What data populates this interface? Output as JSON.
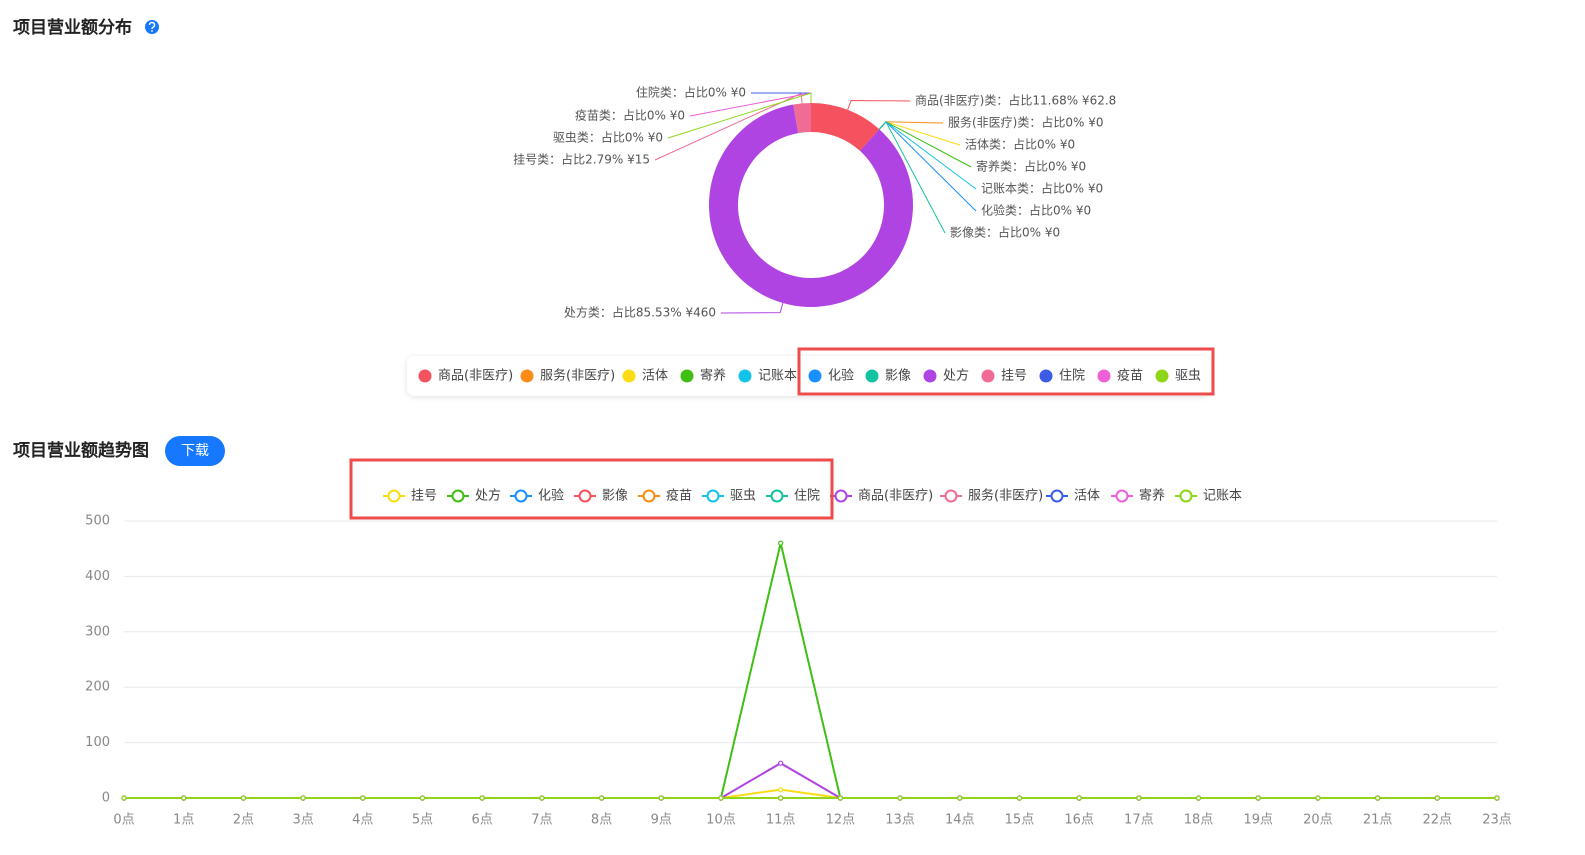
{
  "chart_data": [
    {
      "type": "donut",
      "title": "项目营业额分布",
      "categories": [
        "商品(非医疗)",
        "服务(非医疗)",
        "活体",
        "寄养",
        "记账本",
        "化验",
        "影像",
        "处方",
        "挂号",
        "住院",
        "疫苗",
        "驱虫"
      ],
      "values": [
        62.8,
        0,
        0,
        0,
        0,
        0,
        0,
        460,
        15,
        0,
        0,
        0
      ],
      "value_labels": [
        "商品(非医疗)类：占比11.68% ¥62.8",
        "服务(非医疗)类：占比0% ¥0",
        "活体类：占比0% ¥0",
        "寄养类：占比0% ¥0",
        "记账本类：占比0% ¥0",
        "化验类：占比0% ¥0",
        "影像类：占比0% ¥0",
        "处方类：占比85.53% ¥460",
        "挂号类：占比2.79% ¥15",
        "住院类：占比0% ¥0",
        "疫苗类：占比0% ¥0",
        "驱虫类：占比0% ¥0"
      ],
      "colors": [
        "#f5515f",
        "#fa8c16",
        "#fadb14",
        "#3fbf12",
        "#13c2e8",
        "#1890ff",
        "#13c2a0",
        "#b044e3",
        "#f06c94",
        "#3d5ce6",
        "#ee5fd8",
        "#8fd61a"
      ]
    },
    {
      "type": "line",
      "title": "项目营业额趋势图",
      "categories": [
        "0点",
        "1点",
        "2点",
        "3点",
        "4点",
        "5点",
        "6点",
        "7点",
        "8点",
        "9点",
        "10点",
        "11点",
        "12点",
        "13点",
        "14点",
        "15点",
        "16点",
        "17点",
        "18点",
        "19点",
        "20点",
        "21点",
        "22点",
        "23点"
      ],
      "ylim": [
        0,
        500
      ],
      "yticks": [
        0,
        100,
        200,
        300,
        400,
        500
      ],
      "grid": true,
      "series": [
        {
          "name": "挂号",
          "color": "#fadb14",
          "values": [
            0,
            0,
            0,
            0,
            0,
            0,
            0,
            0,
            0,
            0,
            0,
            15,
            0,
            0,
            0,
            0,
            0,
            0,
            0,
            0,
            0,
            0,
            0,
            0
          ]
        },
        {
          "name": "处方",
          "color": "#3fbf12",
          "values": [
            0,
            0,
            0,
            0,
            0,
            0,
            0,
            0,
            0,
            0,
            0,
            460,
            0,
            0,
            0,
            0,
            0,
            0,
            0,
            0,
            0,
            0,
            0,
            0
          ]
        },
        {
          "name": "化验",
          "color": "#1890ff",
          "values": [
            0,
            0,
            0,
            0,
            0,
            0,
            0,
            0,
            0,
            0,
            0,
            0,
            0,
            0,
            0,
            0,
            0,
            0,
            0,
            0,
            0,
            0,
            0,
            0
          ]
        },
        {
          "name": "影像",
          "color": "#f5515f",
          "values": [
            0,
            0,
            0,
            0,
            0,
            0,
            0,
            0,
            0,
            0,
            0,
            0,
            0,
            0,
            0,
            0,
            0,
            0,
            0,
            0,
            0,
            0,
            0,
            0
          ]
        },
        {
          "name": "疫苗",
          "color": "#fa8c16",
          "values": [
            0,
            0,
            0,
            0,
            0,
            0,
            0,
            0,
            0,
            0,
            0,
            0,
            0,
            0,
            0,
            0,
            0,
            0,
            0,
            0,
            0,
            0,
            0,
            0
          ]
        },
        {
          "name": "驱虫",
          "color": "#13c2e8",
          "values": [
            0,
            0,
            0,
            0,
            0,
            0,
            0,
            0,
            0,
            0,
            0,
            0,
            0,
            0,
            0,
            0,
            0,
            0,
            0,
            0,
            0,
            0,
            0,
            0
          ]
        },
        {
          "name": "住院",
          "color": "#13c2a0",
          "values": [
            0,
            0,
            0,
            0,
            0,
            0,
            0,
            0,
            0,
            0,
            0,
            0,
            0,
            0,
            0,
            0,
            0,
            0,
            0,
            0,
            0,
            0,
            0,
            0
          ]
        },
        {
          "name": "商品(非医疗)",
          "color": "#b044e3",
          "values": [
            0,
            0,
            0,
            0,
            0,
            0,
            0,
            0,
            0,
            0,
            0,
            62.8,
            0,
            0,
            0,
            0,
            0,
            0,
            0,
            0,
            0,
            0,
            0,
            0
          ]
        },
        {
          "name": "服务(非医疗)",
          "color": "#f06c94",
          "values": [
            0,
            0,
            0,
            0,
            0,
            0,
            0,
            0,
            0,
            0,
            0,
            0,
            0,
            0,
            0,
            0,
            0,
            0,
            0,
            0,
            0,
            0,
            0,
            0
          ]
        },
        {
          "name": "活体",
          "color": "#3d5ce6",
          "values": [
            0,
            0,
            0,
            0,
            0,
            0,
            0,
            0,
            0,
            0,
            0,
            0,
            0,
            0,
            0,
            0,
            0,
            0,
            0,
            0,
            0,
            0,
            0,
            0
          ]
        },
        {
          "name": "寄养",
          "color": "#ee5fd8",
          "values": [
            0,
            0,
            0,
            0,
            0,
            0,
            0,
            0,
            0,
            0,
            0,
            0,
            0,
            0,
            0,
            0,
            0,
            0,
            0,
            0,
            0,
            0,
            0,
            0
          ]
        },
        {
          "name": "记账本",
          "color": "#8fd61a",
          "values": [
            0,
            0,
            0,
            0,
            0,
            0,
            0,
            0,
            0,
            0,
            0,
            0,
            0,
            0,
            0,
            0,
            0,
            0,
            0,
            0,
            0,
            0,
            0,
            0
          ]
        }
      ]
    }
  ],
  "download_button": "下载"
}
